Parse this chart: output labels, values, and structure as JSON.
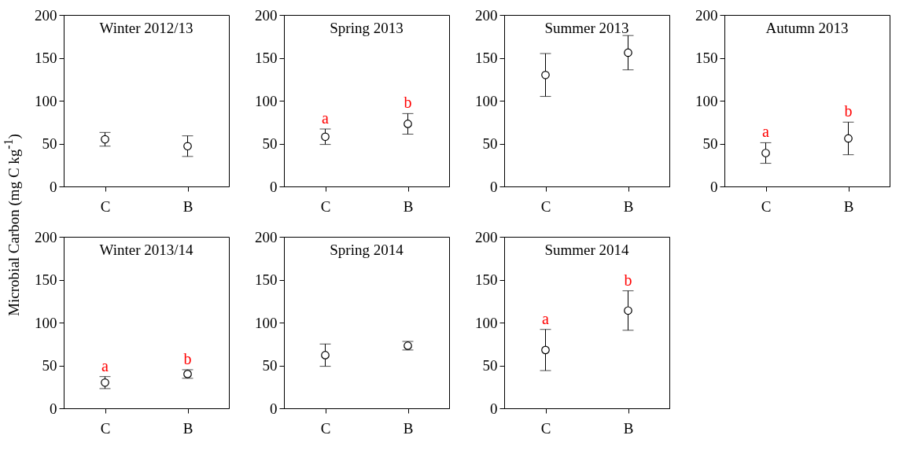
{
  "chart_data": [
    {
      "type": "scatter",
      "title": "Winter 2012/13",
      "ylabel": "Microbial Carbon (mg C kg$^{-1}$)",
      "categories": [
        "C",
        "B"
      ],
      "values": [
        55,
        47
      ],
      "errors": [
        8,
        12
      ],
      "ylim": [
        0,
        200
      ],
      "yticks": [
        0,
        50,
        100,
        150,
        200
      ],
      "marker": "circle",
      "grid": false
    },
    {
      "type": "scatter",
      "title": "Spring 2013",
      "categories": [
        "C",
        "B"
      ],
      "values": [
        58,
        73
      ],
      "errors": [
        9,
        12
      ],
      "ylim": [
        0,
        200
      ],
      "yticks": [
        0,
        50,
        100,
        150,
        200
      ],
      "marker": "circle",
      "grid": false,
      "annotations": [
        {
          "text": "a",
          "x": "C",
          "y": 67
        },
        {
          "text": "b",
          "x": "B",
          "y": 85
        }
      ]
    },
    {
      "type": "scatter",
      "title": "Summer 2013",
      "categories": [
        "C",
        "B"
      ],
      "values": [
        130,
        156
      ],
      "errors": [
        25,
        20
      ],
      "ylim": [
        0,
        200
      ],
      "yticks": [
        0,
        50,
        100,
        150,
        200
      ],
      "marker": "circle",
      "grid": false
    },
    {
      "type": "scatter",
      "title": "Autumn 2013",
      "categories": [
        "C",
        "B"
      ],
      "values": [
        39,
        56
      ],
      "errors": [
        12,
        19
      ],
      "ylim": [
        0,
        200
      ],
      "yticks": [
        0,
        50,
        100,
        150,
        200
      ],
      "marker": "circle",
      "grid": false,
      "annotations": [
        {
          "text": "a",
          "x": "C",
          "y": 51
        },
        {
          "text": "b",
          "x": "B",
          "y": 75
        }
      ]
    },
    {
      "type": "scatter",
      "title": "Winter 2013/14",
      "categories": [
        "C",
        "B"
      ],
      "values": [
        30,
        40
      ],
      "errors": [
        7,
        5
      ],
      "ylim": [
        0,
        200
      ],
      "yticks": [
        0,
        50,
        100,
        150,
        200
      ],
      "marker": "circle",
      "grid": false,
      "annotations": [
        {
          "text": "a",
          "x": "C",
          "y": 37
        },
        {
          "text": "b",
          "x": "B",
          "y": 45
        }
      ]
    },
    {
      "type": "scatter",
      "title": "Spring 2014",
      "categories": [
        "C",
        "B"
      ],
      "values": [
        62,
        73
      ],
      "errors": [
        13,
        5
      ],
      "ylim": [
        0,
        200
      ],
      "yticks": [
        0,
        50,
        100,
        150,
        200
      ],
      "marker": "circle",
      "grid": false
    },
    {
      "type": "scatter",
      "title": "Summer 2014",
      "categories": [
        "C",
        "B"
      ],
      "values": [
        68,
        114
      ],
      "errors": [
        24,
        23
      ],
      "ylim": [
        0,
        200
      ],
      "yticks": [
        0,
        50,
        100,
        150,
        200
      ],
      "marker": "circle",
      "grid": false,
      "annotations": [
        {
          "text": "a",
          "x": "C",
          "y": 92
        },
        {
          "text": "b",
          "x": "B",
          "y": 137
        }
      ]
    }
  ]
}
